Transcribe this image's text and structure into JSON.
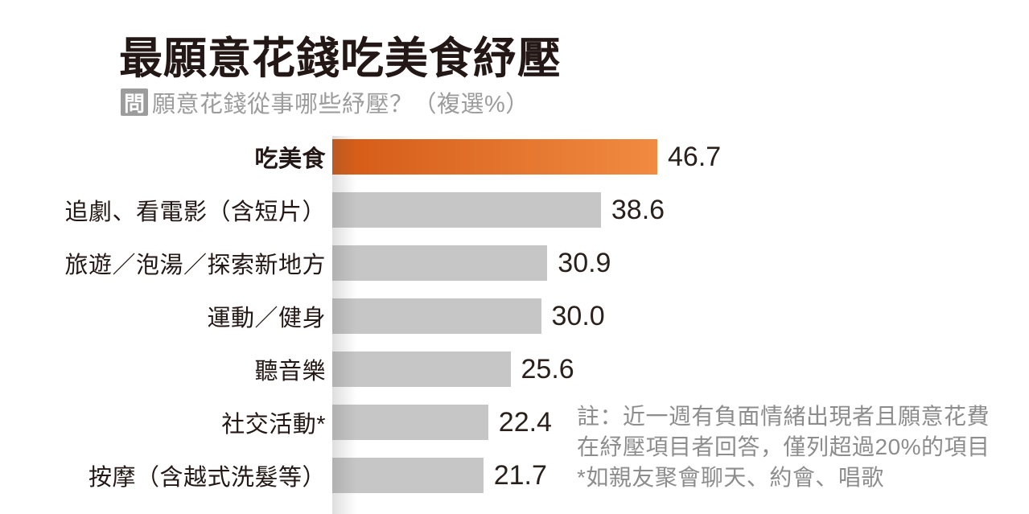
{
  "header": {
    "title": "最願意花錢吃美食紓壓",
    "question_badge": "問",
    "subtitle": "願意花錢從事哪些紓壓？（複選%）"
  },
  "chart_data": {
    "type": "bar",
    "orientation": "horizontal",
    "title": "最願意花錢吃美食紓壓",
    "subtitle": "願意花錢從事哪些紓壓？（複選%）",
    "unit": "%",
    "xlim": [
      0,
      50
    ],
    "grid": false,
    "legend": false,
    "categories": [
      "吃美食",
      "追劇、看電影（含短片）",
      "旅遊／泡湯／探索新地方",
      "運動／健身",
      "聽音樂",
      "社交活動*",
      "按摩（含越式洗髮等）"
    ],
    "values": [
      46.7,
      38.6,
      30.9,
      30.0,
      25.6,
      22.4,
      21.7
    ],
    "rows": [
      {
        "label": "吃美食",
        "value": "46.7",
        "highlighted": true
      },
      {
        "label": "追劇、看電影（含短片）",
        "value": "38.6",
        "highlighted": false
      },
      {
        "label": "旅遊／泡湯／探索新地方",
        "value": "30.9",
        "highlighted": false
      },
      {
        "label": "運動／健身",
        "value": "30.0",
        "highlighted": false
      },
      {
        "label": "聽音樂",
        "value": "25.6",
        "highlighted": false
      },
      {
        "label": "社交活動*",
        "value": "22.4",
        "highlighted": false
      },
      {
        "label": "按摩（含越式洗髮等）",
        "value": "21.7",
        "highlighted": false
      }
    ],
    "colors": {
      "highlight_bar_start": "#d45a16",
      "highlight_bar_end": "#f18b41",
      "bar_gray": "#c6c6c6",
      "label_text": "#231815",
      "value_text": "#2b211c",
      "subtitle_gray": "#9c9c9c",
      "note_gray": "#8d8d8d"
    }
  },
  "note": {
    "lines": [
      "註：近一週有負面情緒出現者且願意花費",
      "在紓壓項目者回答，僅列超過20%的項目",
      "*如親友聚會聊天、約會、唱歌"
    ]
  }
}
